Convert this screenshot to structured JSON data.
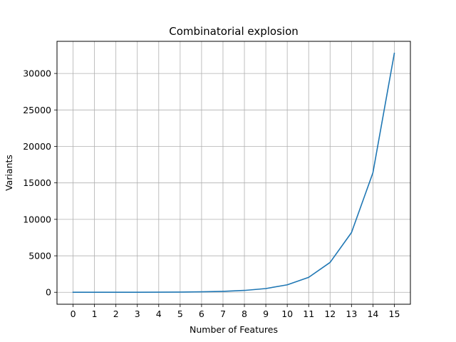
{
  "chart_data": {
    "type": "line",
    "title": "Combinatorial explosion",
    "xlabel": "Number of Features",
    "ylabel": "Variants",
    "x": [
      0,
      1,
      2,
      3,
      4,
      5,
      6,
      7,
      8,
      9,
      10,
      11,
      12,
      13,
      14,
      15
    ],
    "series": [
      {
        "values": [
          1,
          2,
          4,
          8,
          16,
          32,
          64,
          128,
          256,
          512,
          1024,
          2048,
          4096,
          8192,
          16384,
          32768
        ],
        "color": "#1f77b4"
      }
    ],
    "xlim": [
      -0.75,
      15.75
    ],
    "ylim": [
      -1638,
      34406
    ],
    "xticks": [
      0,
      1,
      2,
      3,
      4,
      5,
      6,
      7,
      8,
      9,
      10,
      11,
      12,
      13,
      14,
      15
    ],
    "yticks": [
      0,
      5000,
      10000,
      15000,
      20000,
      25000,
      30000
    ],
    "grid": true,
    "legend": "none"
  }
}
